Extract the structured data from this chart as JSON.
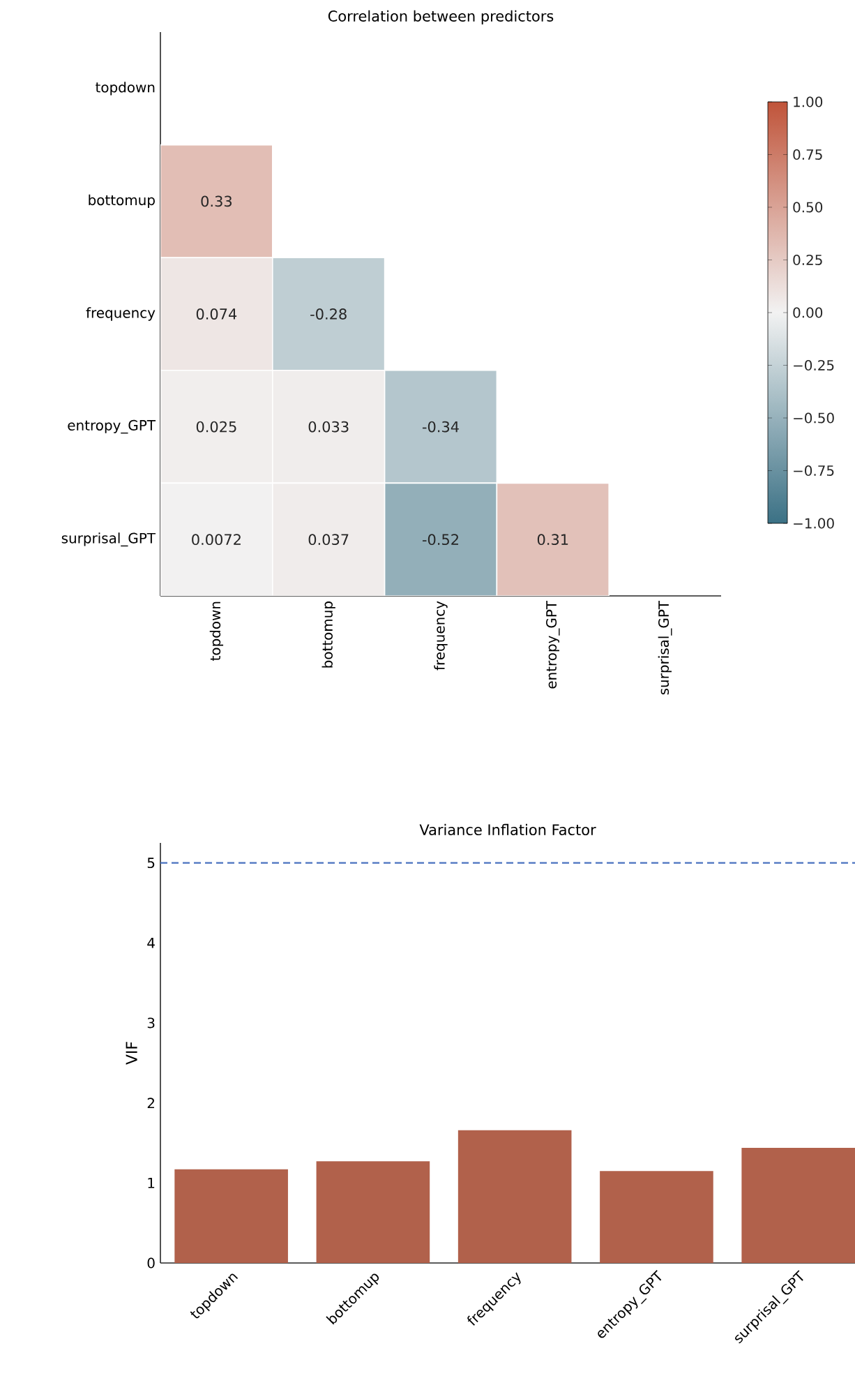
{
  "chart_data": [
    {
      "type": "heatmap",
      "title": "Correlation between predictors",
      "categories": [
        "topdown",
        "bottomup",
        "frequency",
        "entropy_GPT",
        "surprisal_GPT"
      ],
      "y_categories": [
        "topdown",
        "bottomup",
        "frequency",
        "entropy_GPT",
        "surprisal_GPT"
      ],
      "cells": [
        [
          null,
          null,
          null,
          null,
          null
        ],
        [
          0.33,
          null,
          null,
          null,
          null
        ],
        [
          0.074,
          -0.28,
          null,
          null,
          null
        ],
        [
          0.025,
          0.033,
          -0.34,
          null,
          null
        ],
        [
          0.0072,
          0.037,
          -0.52,
          0.31,
          null
        ]
      ],
      "clim": [
        -1,
        1
      ],
      "cticks": [
        {
          "value": 1,
          "label": "1.00"
        },
        {
          "value": 0.75,
          "label": "0.75"
        },
        {
          "value": 0.5,
          "label": "0.50"
        },
        {
          "value": 0.25,
          "label": "0.25"
        },
        {
          "value": 0,
          "label": "0.00"
        },
        {
          "value": -0.25,
          "label": "−0.25"
        },
        {
          "value": -0.5,
          "label": "−0.50"
        },
        {
          "value": -0.75,
          "label": "−0.75"
        },
        {
          "value": -1,
          "label": "−1.00"
        }
      ],
      "data_labels": true
    },
    {
      "type": "bar",
      "title": "Variance Inflation Factor",
      "ylabel": "VIF",
      "categories": [
        "topdown",
        "bottomup",
        "frequency",
        "entropy_GPT",
        "surprisal_GPT"
      ],
      "values": [
        1.17,
        1.27,
        1.66,
        1.15,
        1.44
      ],
      "color": "#b1614b",
      "ylim": [
        0,
        5.25
      ],
      "yticks": [
        0,
        1,
        2,
        3,
        4,
        5
      ],
      "ref_lines": [
        {
          "axis": "y",
          "value": 5,
          "color": "#4a72c0",
          "line_style": "dashed"
        }
      ]
    }
  ]
}
